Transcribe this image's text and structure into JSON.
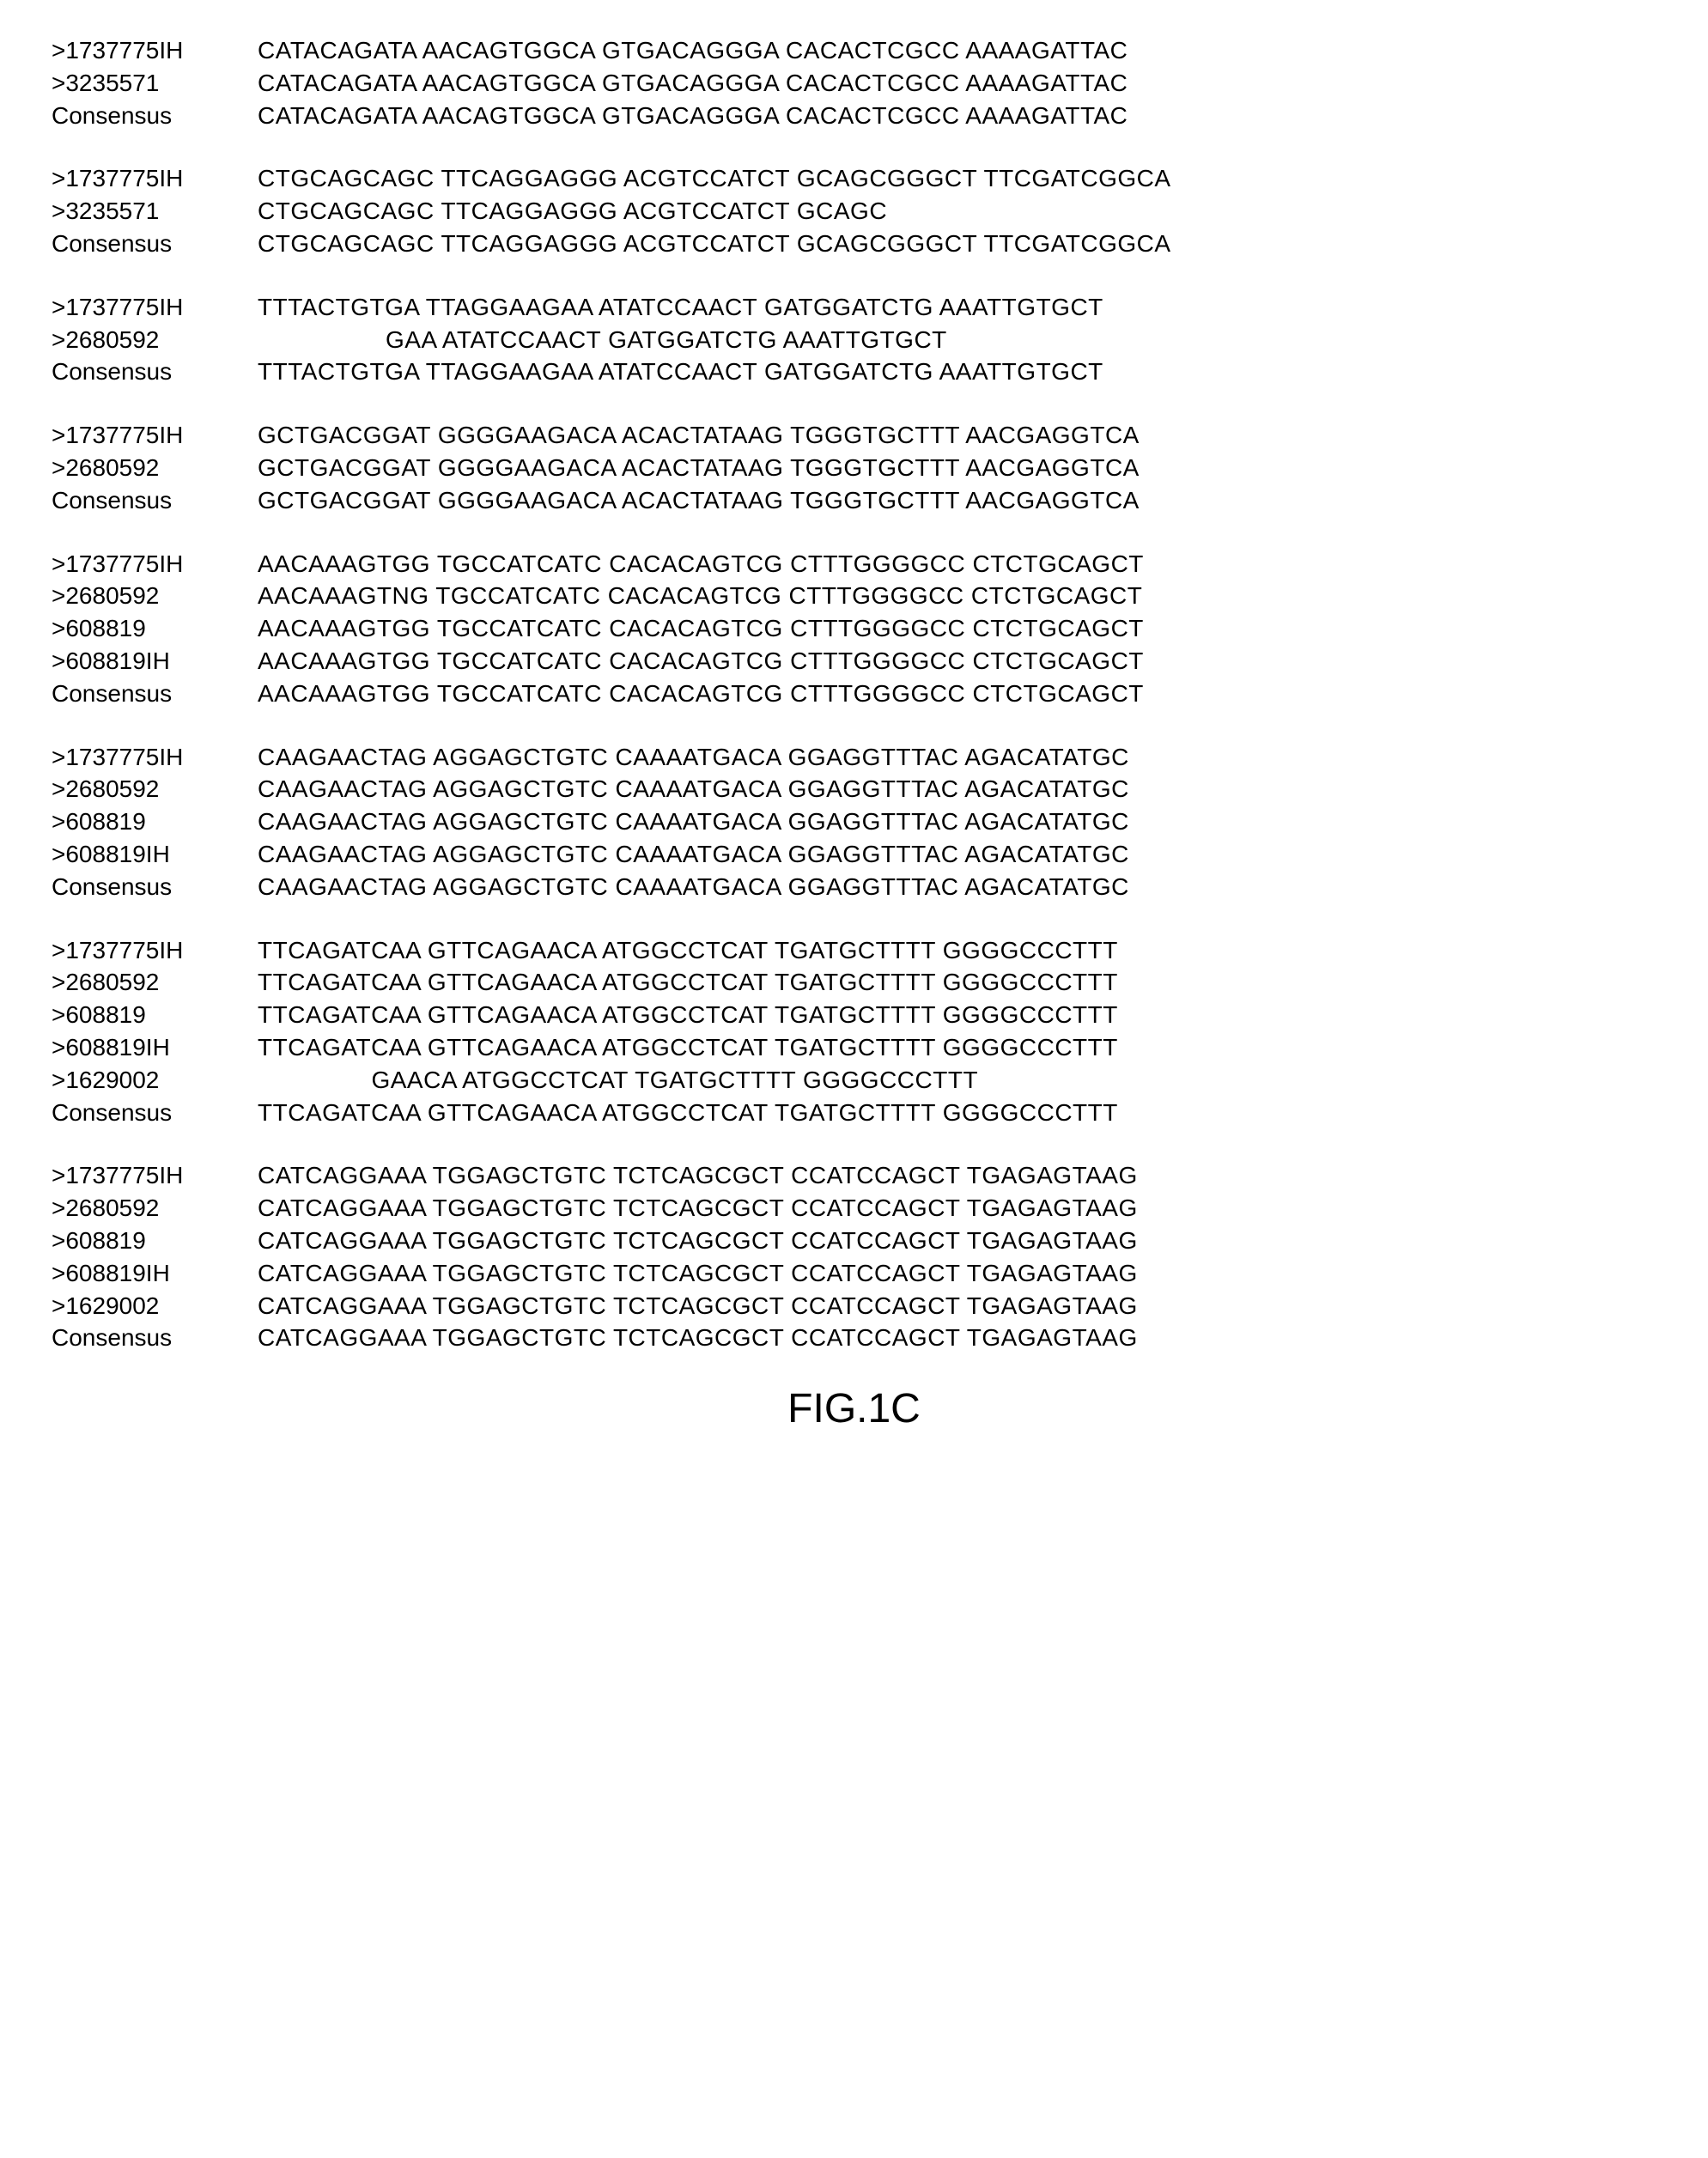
{
  "caption": "FIG.1C",
  "font_size_label": 28,
  "font_size_seq": 28,
  "font_size_caption": 48,
  "background_color": "#ffffff",
  "text_color": "#000000",
  "blocks": [
    {
      "rows": [
        {
          "label": ">1737775IH",
          "cols": [
            "CATACAGATA",
            "AACAGTGGCA",
            "GTGACAGGGA",
            "CACACTCGCC",
            "AAAAGATTAC"
          ]
        },
        {
          "label": ">3235571",
          "cols": [
            "CATACAGATA",
            "AACAGTGGCA",
            "GTGACAGGGA",
            "CACACTCGCC",
            "AAAAGATTAC"
          ]
        },
        {
          "label": "Consensus",
          "cols": [
            "CATACAGATA",
            "AACAGTGGCA",
            "GTGACAGGGA",
            "CACACTCGCC",
            "AAAAGATTAC"
          ]
        }
      ]
    },
    {
      "rows": [
        {
          "label": ">1737775IH",
          "cols": [
            "CTGCAGCAGC",
            "TTCAGGAGGG",
            "ACGTCCATCT",
            "GCAGCGGGCT",
            "TTCGATCGGCA"
          ]
        },
        {
          "label": ">3235571",
          "cols": [
            "CTGCAGCAGC",
            "TTCAGGAGGG",
            "ACGTCCATCT",
            "GCAGC",
            ""
          ]
        },
        {
          "label": "Consensus",
          "cols": [
            "CTGCAGCAGC",
            "TTCAGGAGGG",
            "ACGTCCATCT",
            "GCAGCGGGCT",
            "TTCGATCGGCA"
          ]
        }
      ]
    },
    {
      "rows": [
        {
          "label": ">1737775IH",
          "cols": [
            "TTTACTGTGA",
            "TTAGGAAGAA",
            "ATATCCAACT",
            "GATGGATCTG",
            "AAATTGTGCT"
          ]
        },
        {
          "label": ">2680592",
          "cols": [
            "",
            "       GAA",
            "ATATCCAACT",
            "GATGGATCTG",
            "AAATTGTGCT"
          ],
          "align_right_first_two": true
        },
        {
          "label": "Consensus",
          "cols": [
            "TTTACTGTGA",
            "TTAGGAAGAA",
            "ATATCCAACT",
            "GATGGATCTG",
            "AAATTGTGCT"
          ]
        }
      ]
    },
    {
      "rows": [
        {
          "label": ">1737775IH",
          "cols": [
            "GCTGACGGAT",
            "GGGGAAGACA",
            "ACACTATAAG",
            "TGGGTGCTTT",
            "AACGAGGTCA"
          ]
        },
        {
          "label": ">2680592",
          "cols": [
            "GCTGACGGAT",
            "GGGGAAGACA",
            "ACACTATAAG",
            "TGGGTGCTTT",
            "AACGAGGTCA"
          ]
        },
        {
          "label": "Consensus",
          "cols": [
            "GCTGACGGAT",
            "GGGGAAGACA",
            "ACACTATAAG",
            "TGGGTGCTTT",
            "AACGAGGTCA"
          ]
        }
      ]
    },
    {
      "rows": [
        {
          "label": ">1737775IH",
          "cols": [
            "AACAAAGTGG",
            "TGCCATCATC",
            "CACACAGTCG",
            "CTTTGGGGCC",
            "CTCTGCAGCT"
          ]
        },
        {
          "label": ">2680592",
          "cols": [
            "AACAAAGTNG",
            "TGCCATCATC",
            "CACACAGTCG",
            "CTTTGGGGCC",
            "CTCTGCAGCT"
          ]
        },
        {
          "label": ">608819",
          "cols": [
            "AACAAAGTGG",
            "TGCCATCATC",
            "CACACAGTCG",
            "CTTTGGGGCC",
            "CTCTGCAGCT"
          ]
        },
        {
          "label": ">608819IH",
          "cols": [
            "AACAAAGTGG",
            "TGCCATCATC",
            "CACACAGTCG",
            "CTTTGGGGCC",
            "CTCTGCAGCT"
          ]
        },
        {
          "label": "Consensus",
          "cols": [
            "AACAAAGTGG",
            "TGCCATCATC",
            "CACACAGTCG",
            "CTTTGGGGCC",
            "CTCTGCAGCT"
          ]
        }
      ]
    },
    {
      "rows": [
        {
          "label": ">1737775IH",
          "cols": [
            "CAAGAACTAG",
            "AGGAGCTGTC",
            "CAAAATGACA",
            "GGAGGTTTAC",
            "AGACATATGC"
          ]
        },
        {
          "label": ">2680592",
          "cols": [
            "CAAGAACTAG",
            "AGGAGCTGTC",
            "CAAAATGACA",
            "GGAGGTTTAC",
            "AGACATATGC"
          ]
        },
        {
          "label": ">608819",
          "cols": [
            "CAAGAACTAG",
            "AGGAGCTGTC",
            "CAAAATGACA",
            "GGAGGTTTAC",
            "AGACATATGC"
          ]
        },
        {
          "label": ">608819IH",
          "cols": [
            "CAAGAACTAG",
            "AGGAGCTGTC",
            "CAAAATGACA",
            "GGAGGTTTAC",
            "AGACATATGC"
          ]
        },
        {
          "label": "Consensus",
          "cols": [
            "CAAGAACTAG",
            "AGGAGCTGTC",
            "CAAAATGACA",
            "GGAGGTTTAC",
            "AGACATATGC"
          ]
        }
      ]
    },
    {
      "rows": [
        {
          "label": ">1737775IH",
          "cols": [
            "TTCAGATCAA",
            "GTTCAGAACA",
            "ATGGCCTCAT",
            "TGATGCTTTT",
            "GGGGCCCTTT"
          ]
        },
        {
          "label": ">2680592",
          "cols": [
            "TTCAGATCAA",
            "GTTCAGAACA",
            "ATGGCCTCAT",
            "TGATGCTTTT",
            "GGGGCCCTTT"
          ]
        },
        {
          "label": ">608819",
          "cols": [
            "TTCAGATCAA",
            "GTTCAGAACA",
            "ATGGCCTCAT",
            "TGATGCTTTT",
            "GGGGCCCTTT"
          ]
        },
        {
          "label": ">608819IH",
          "cols": [
            "TTCAGATCAA",
            "GTTCAGAACA",
            "ATGGCCTCAT",
            "TGATGCTTTT",
            "GGGGCCCTTT"
          ]
        },
        {
          "label": ">1629002",
          "cols": [
            "",
            "     GAACA",
            "ATGGCCTCAT",
            "TGATGCTTTT",
            "GGGGCCCTTT"
          ],
          "align_right_first_two": true
        },
        {
          "label": "Consensus",
          "cols": [
            "TTCAGATCAA",
            "GTTCAGAACA",
            "ATGGCCTCAT",
            "TGATGCTTTT",
            "GGGGCCCTTT"
          ]
        }
      ]
    },
    {
      "rows": [
        {
          "label": ">1737775IH",
          "cols": [
            "CATCAGGAAA",
            "TGGAGCTGTC",
            "TCTCAGCGCT",
            "CCATCCAGCT",
            "TGAGAGTAAG"
          ]
        },
        {
          "label": ">2680592",
          "cols": [
            "CATCAGGAAA",
            "TGGAGCTGTC",
            "TCTCAGCGCT",
            "CCATCCAGCT",
            "TGAGAGTAAG"
          ]
        },
        {
          "label": ">608819",
          "cols": [
            "CATCAGGAAA",
            "TGGAGCTGTC",
            "TCTCAGCGCT",
            "CCATCCAGCT",
            "TGAGAGTAAG"
          ]
        },
        {
          "label": ">608819IH",
          "cols": [
            "CATCAGGAAA",
            "TGGAGCTGTC",
            "TCTCAGCGCT",
            "CCATCCAGCT",
            "TGAGAGTAAG"
          ]
        },
        {
          "label": ">1629002",
          "cols": [
            "CATCAGGAAA",
            "TGGAGCTGTC",
            "TCTCAGCGCT",
            "CCATCCAGCT",
            "TGAGAGTAAG"
          ]
        },
        {
          "label": "Consensus",
          "cols": [
            "CATCAGGAAA",
            "TGGAGCTGTC",
            "TCTCAGCGCT",
            "CCATCCAGCT",
            "TGAGAGTAAG"
          ]
        }
      ]
    }
  ]
}
